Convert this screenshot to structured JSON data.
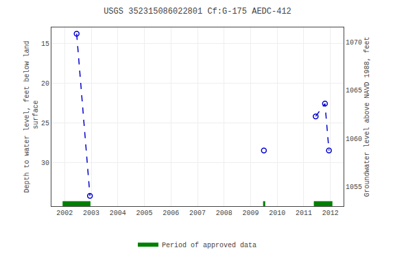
{
  "chart_data": {
    "type": "line",
    "title": "USGS 352315086022801 Cf:G-175 AEDC-412",
    "ylabel": "Depth to water level, feet below land\n surface",
    "y2label": "Groundwater level above NAVD 1988, feet",
    "x": [
      2002.45,
      2002.95,
      null,
      2009.5,
      null,
      2011.45,
      2011.8,
      2011.95
    ],
    "series": [
      {
        "color": "#0000cc",
        "marker": "circle-open",
        "line_style": "dash",
        "values": [
          13.8,
          34.2,
          null,
          28.5,
          null,
          24.2,
          22.6,
          28.5
        ]
      }
    ],
    "xlim": [
      2001.5,
      2012.5
    ],
    "xticks": [
      2002,
      2003,
      2004,
      2005,
      2006,
      2007,
      2008,
      2009,
      2010,
      2011,
      2012
    ],
    "ylim": [
      35.5,
      13
    ],
    "yticks": [
      15,
      20,
      25,
      30
    ],
    "y2lim": [
      1053.0,
      1071.5
    ],
    "y2ticks": [
      1055,
      1060,
      1065,
      1070
    ],
    "approved_periods": {
      "name": "Period of approved data",
      "color": "#008000",
      "start": [
        2001.92,
        2009.47,
        2011.38
      ],
      "end": [
        2002.97,
        2009.55,
        2012.08
      ]
    },
    "grid": true,
    "legend": "lower center"
  }
}
